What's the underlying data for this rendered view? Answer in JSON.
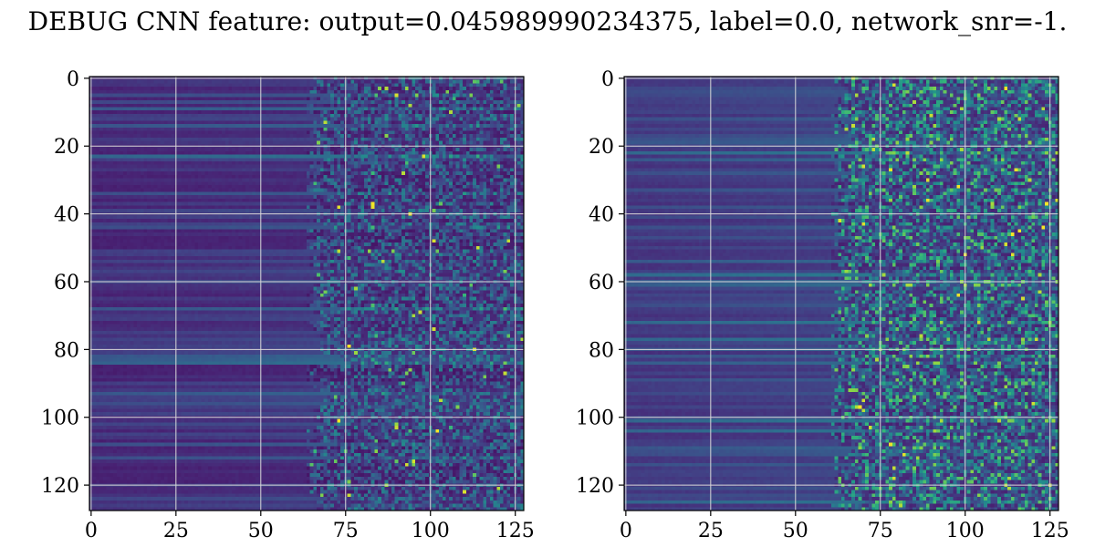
{
  "figure": {
    "title": "DEBUG CNN feature: output=0.045989990234375, label=0.0, network_snr=-1."
  },
  "chart_data": [
    {
      "type": "heatmap",
      "name": "left",
      "xlim": [
        0,
        127
      ],
      "ylim": [
        127,
        0
      ],
      "xticks": [
        0,
        25,
        50,
        75,
        100,
        125
      ],
      "yticks": [
        0,
        20,
        40,
        60,
        80,
        100,
        120
      ],
      "grid": true,
      "colormap": "viridis",
      "grid_color": "#d9d9d9",
      "transition_col": 75,
      "noise_level": 0.22,
      "background_level": 0.13
    },
    {
      "type": "heatmap",
      "name": "right",
      "xlim": [
        0,
        127
      ],
      "ylim": [
        127,
        0
      ],
      "xticks": [
        0,
        25,
        50,
        75,
        100,
        125
      ],
      "yticks": [
        0,
        20,
        40,
        60,
        80,
        100,
        120
      ],
      "grid": true,
      "colormap": "viridis",
      "grid_color": "#d9d9d9",
      "transition_col": 72,
      "noise_level": 0.32,
      "background_level": 0.2
    }
  ]
}
